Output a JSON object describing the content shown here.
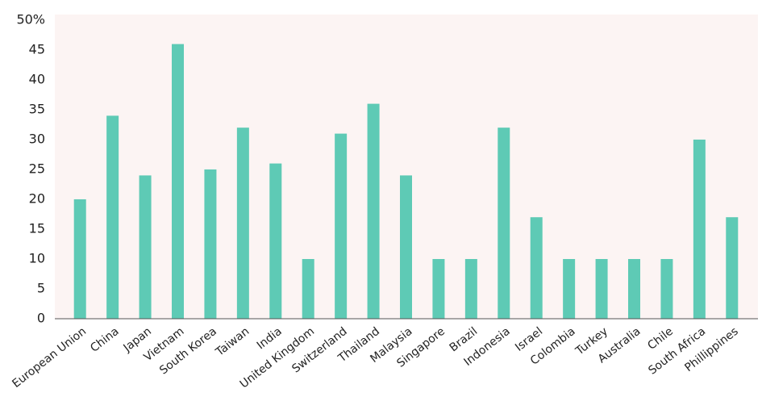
{
  "chart_data": {
    "type": "bar",
    "categories": [
      "European Union",
      "China",
      "Japan",
      "Vietnam",
      "South Korea",
      "Taiwan",
      "India",
      "United Kingdom",
      "Switzerland",
      "Thailand",
      "Malaysia",
      "Singapore",
      "Brazil",
      "Indonesia",
      "Israel",
      "Colombia",
      "Turkey",
      "Australia",
      "Chile",
      "South Africa",
      "Phillippines"
    ],
    "values": [
      20,
      34,
      24,
      46,
      25,
      32,
      26,
      10,
      31,
      36,
      24,
      10,
      10,
      32,
      17,
      10,
      10,
      10,
      10,
      30,
      17
    ],
    "color": "#5ecab5",
    "ylim": [
      0,
      50
    ],
    "yticks": [
      0,
      5,
      10,
      15,
      20,
      25,
      30,
      35,
      40,
      45,
      {
        "value": 50,
        "label": "50%"
      }
    ],
    "grid": false
  }
}
